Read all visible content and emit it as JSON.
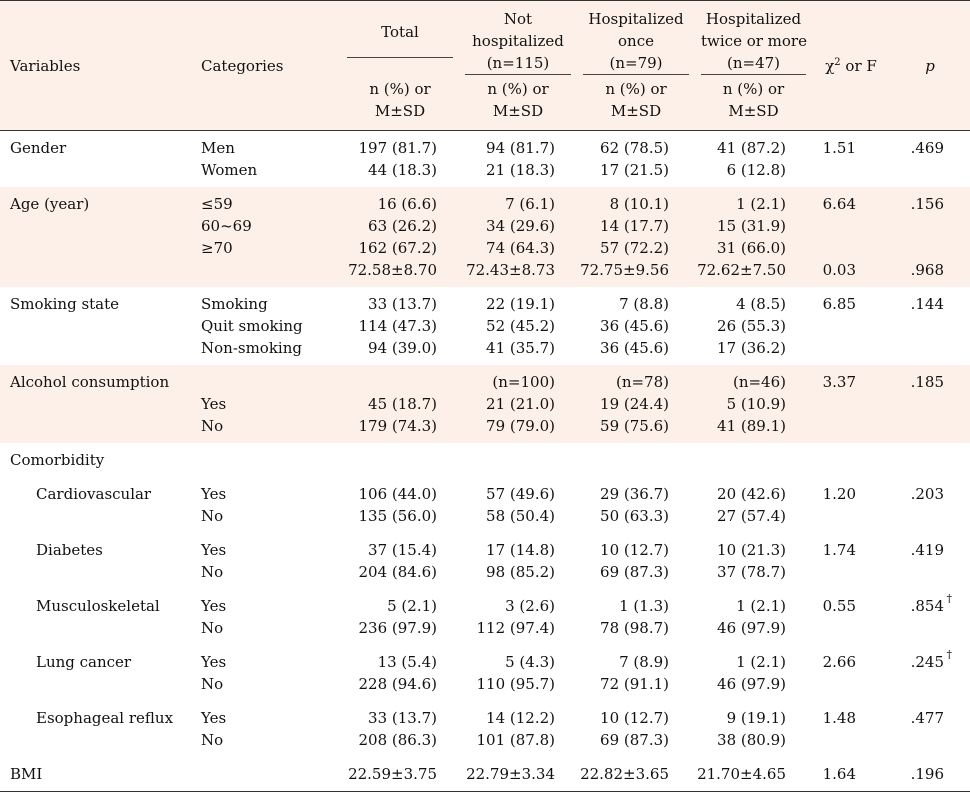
{
  "header": {
    "variables": "Variables",
    "categories": "Categories",
    "total": "Total",
    "not_hosp_1": "Not",
    "not_hosp_2": "hospitalized",
    "not_hosp_3": "(n=115)",
    "once_1": "Hospitalized",
    "once_2": "once",
    "once_3": "(n=79)",
    "twice_1": "Hospitalized",
    "twice_2": "twice or more",
    "twice_3": "(n=47)",
    "chi_label": "χ",
    "chi_sup": "2",
    "chi_rest": " or F",
    "p": "p",
    "sub_1": "n (%) or",
    "sub_2": "M±SD"
  },
  "rows": {
    "gender": {
      "var": "Gender",
      "cats": [
        "Men",
        "Women"
      ],
      "total": [
        "197 (81.7)",
        "44 (18.3)"
      ],
      "not_hosp": [
        "94 (81.7)",
        "21 (18.3)"
      ],
      "once": [
        "62 (78.5)",
        "17 (21.5)"
      ],
      "twice": [
        "41 (87.2)",
        "6 (12.8)"
      ],
      "stat": [
        "1.51"
      ],
      "p": [
        ".469"
      ]
    },
    "age": {
      "var": "Age (year)",
      "cats": [
        "≤59",
        "60~69",
        "≥70",
        ""
      ],
      "total": [
        "16 (6.6)",
        "63 (26.2)",
        "162 (67.2)",
        "72.58±8.70"
      ],
      "not_hosp": [
        "7 (6.1)",
        "34 (29.6)",
        "74 (64.3)",
        "72.43±8.73"
      ],
      "once": [
        "8 (10.1)",
        "14 (17.7)",
        "57 (72.2)",
        "72.75±9.56"
      ],
      "twice": [
        "1 (2.1)",
        "15 (31.9)",
        "31 (66.0)",
        "72.62±7.50"
      ],
      "stat": [
        "6.64",
        "",
        "",
        "0.03"
      ],
      "p": [
        ".156",
        "",
        "",
        ".968"
      ]
    },
    "smoking": {
      "var": "Smoking state",
      "cats": [
        "Smoking",
        "Quit smoking",
        "Non-smoking"
      ],
      "total": [
        "33 (13.7)",
        "114 (47.3)",
        "94 (39.0)"
      ],
      "not_hosp": [
        "22 (19.1)",
        "52 (45.2)",
        "41 (35.7)"
      ],
      "once": [
        "7 (8.8)",
        "36 (45.6)",
        "36 (45.6)"
      ],
      "twice": [
        "4 (8.5)",
        "26 (55.3)",
        "17 (36.2)"
      ],
      "stat": [
        "6.85"
      ],
      "p": [
        ".144"
      ]
    },
    "alcohol": {
      "var": "Alcohol consumption",
      "cats": [
        "",
        "Yes",
        "No"
      ],
      "total": [
        "",
        "45 (18.7)",
        "179 (74.3)"
      ],
      "not_hosp": [
        "(n=100)",
        "21 (21.0)",
        "79 (79.0)"
      ],
      "once": [
        "(n=78)",
        "19 (24.4)",
        "59 (75.6)"
      ],
      "twice": [
        "(n=46)",
        "5 (10.9)",
        "41 (89.1)"
      ],
      "stat": [
        "3.37"
      ],
      "p": [
        ".185"
      ]
    },
    "comorbidity": {
      "var": "Comorbidity"
    },
    "cardio": {
      "var": "Cardiovascular",
      "cats": [
        "Yes",
        "No"
      ],
      "total": [
        "106 (44.0)",
        "135 (56.0)"
      ],
      "not_hosp": [
        "57 (49.6)",
        "58 (50.4)"
      ],
      "once": [
        "29 (36.7)",
        "50 (63.3)"
      ],
      "twice": [
        "20 (42.6)",
        "27 (57.4)"
      ],
      "stat": [
        "1.20"
      ],
      "p": [
        ".203"
      ]
    },
    "diabetes": {
      "var": "Diabetes",
      "cats": [
        "Yes",
        "No"
      ],
      "total": [
        "37 (15.4)",
        "204 (84.6)"
      ],
      "not_hosp": [
        "17 (14.8)",
        "98 (85.2)"
      ],
      "once": [
        "10 (12.7)",
        "69 (87.3)"
      ],
      "twice": [
        "10 (21.3)",
        "37 (78.7)"
      ],
      "stat": [
        "1.74"
      ],
      "p": [
        ".419"
      ]
    },
    "musculo": {
      "var": "Musculoskeletal",
      "cats": [
        "Yes",
        "No"
      ],
      "total": [
        "5 (2.1)",
        "236 (97.9)"
      ],
      "not_hosp": [
        "3 (2.6)",
        "112 (97.4)"
      ],
      "once": [
        "1 (1.3)",
        "78 (98.7)"
      ],
      "twice": [
        "1 (2.1)",
        "46 (97.9)"
      ],
      "stat": [
        "0.55"
      ],
      "p": [
        ".854"
      ],
      "p_mark": "†"
    },
    "lung": {
      "var": "Lung cancer",
      "cats": [
        "Yes",
        "No"
      ],
      "total": [
        "13 (5.4)",
        "228 (94.6)"
      ],
      "not_hosp": [
        "5 (4.3)",
        "110 (95.7)"
      ],
      "once": [
        "7 (8.9)",
        "72 (91.1)"
      ],
      "twice": [
        "1 (2.1)",
        "46 (97.9)"
      ],
      "stat": [
        "2.66"
      ],
      "p": [
        ".245"
      ],
      "p_mark": "†"
    },
    "esoph": {
      "var": "Esophageal reflux",
      "cats": [
        "Yes",
        "No"
      ],
      "total": [
        "33 (13.7)",
        "208 (86.3)"
      ],
      "not_hosp": [
        "14 (12.2)",
        "101 (87.8)"
      ],
      "once": [
        "10 (12.7)",
        "69 (87.3)"
      ],
      "twice": [
        "9 (19.1)",
        "38 (80.9)"
      ],
      "stat": [
        "1.48"
      ],
      "p": [
        ".477"
      ]
    },
    "bmi": {
      "var": "BMI",
      "total": "22.59±3.75",
      "not_hosp": "22.79±3.34",
      "once": "22.82±3.65",
      "twice": "21.70±4.65",
      "stat": "1.64",
      "p": ".196"
    }
  }
}
